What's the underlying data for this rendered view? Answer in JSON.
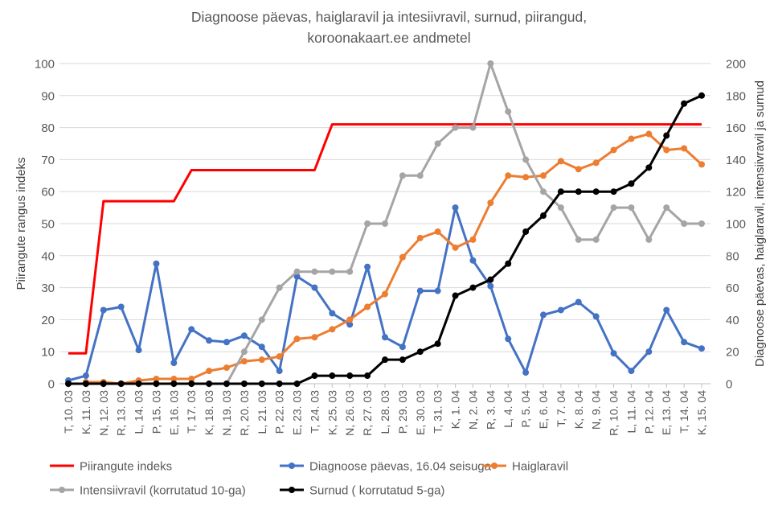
{
  "chart_data": {
    "type": "line",
    "title": "Diagnoose päevas, haiglaravil ja intesiivravil, surnud, piirangud, koroonakaart.ee andmetel",
    "title_lines": [
      "Diagnoose päevas, haiglaravil ja intesiivravil, surnud, piirangud,",
      "koroonakaart.ee andmetel"
    ],
    "ylabel": "Piirangute rangus indeks",
    "y2label": "Diagnoose päevas, haiglaravil, intensiivravil ja surnud",
    "ylim": [
      0,
      100
    ],
    "y2lim": [
      0,
      200
    ],
    "yticks": [
      0,
      10,
      20,
      30,
      40,
      50,
      60,
      70,
      80,
      90,
      100
    ],
    "y2ticks": [
      0,
      20,
      40,
      60,
      80,
      100,
      120,
      140,
      160,
      180,
      200
    ],
    "grid": true,
    "legend_position": "bottom",
    "categories": [
      "T, 10. 03",
      "K, 11. 03",
      "N, 12. 03",
      "R, 13. 03",
      "L, 14. 03",
      "P, 15. 03",
      "E, 16. 03",
      "T, 17. 03",
      "K, 18. 03",
      "N, 19. 03",
      "R, 20. 03",
      "L, 21. 03",
      "P, 22. 03",
      "E, 23. 03",
      "T, 24. 03",
      "K, 25. 03",
      "N, 26. 03",
      "R, 27. 03",
      "L, 28. 03",
      "P, 29. 03",
      "E, 30. 03",
      "T, 31. 03",
      "K, 1. 04",
      "N, 2. 04",
      "R, 3. 04",
      "L, 4. 04",
      "P, 5. 04",
      "E, 6. 04",
      "T, 7. 04",
      "K, 8. 04",
      "N, 9. 04",
      "R, 10. 04",
      "L, 11. 04",
      "P, 12. 04",
      "E, 13. 04",
      "T, 14. 04",
      "K, 15. 04"
    ],
    "series": [
      {
        "name": "Piirangute indeks",
        "axis": "left",
        "color": "#FF0000",
        "markers": false,
        "values": [
          9.5,
          9.5,
          57,
          57,
          57,
          57,
          57,
          66.7,
          66.7,
          66.7,
          66.7,
          66.7,
          66.7,
          66.7,
          66.7,
          81,
          81,
          81,
          81,
          81,
          81,
          81,
          81,
          81,
          81,
          81,
          81,
          81,
          81,
          81,
          81,
          81,
          81,
          81,
          81,
          81,
          81
        ]
      },
      {
        "name": "Diagnoose päevas, 16.04 seisuga",
        "axis": "right",
        "color": "#4472C4",
        "markers": true,
        "values": [
          2,
          5,
          46,
          48,
          21,
          75,
          13,
          34,
          27,
          26,
          30,
          23,
          8,
          67,
          60,
          44,
          37,
          73,
          29,
          23,
          58,
          58,
          110,
          77,
          61,
          28,
          7,
          43,
          46,
          51,
          42,
          19,
          8,
          20,
          46,
          26,
          22
        ]
      },
      {
        "name": "Haiglaravil",
        "axis": "right",
        "color": "#ED7D31",
        "markers": true,
        "values": [
          null,
          1,
          1,
          0,
          2,
          3,
          3,
          3,
          8,
          10,
          14,
          15,
          17,
          28,
          29,
          34,
          40,
          48,
          56,
          79,
          91,
          95,
          85,
          90,
          113,
          130,
          129,
          130,
          139,
          134,
          138,
          146,
          153,
          156,
          146,
          147,
          137
        ]
      },
      {
        "name": "Intensiivravil  (korrutatud 10-ga)",
        "axis": "right",
        "color": "#A5A5A5",
        "markers": true,
        "values": [
          null,
          null,
          null,
          null,
          null,
          null,
          null,
          null,
          null,
          0,
          20,
          40,
          60,
          70,
          70,
          70,
          70,
          100,
          100,
          130,
          130,
          150,
          160,
          160,
          200,
          170,
          140,
          120,
          110,
          90,
          90,
          110,
          110,
          90,
          110,
          100,
          100
        ]
      },
      {
        "name": "Surnud ( korrutatud 5-ga)",
        "axis": "right",
        "color": "#000000",
        "markers": true,
        "values": [
          0,
          0,
          0,
          0,
          0,
          0,
          0,
          0,
          0,
          0,
          0,
          0,
          0,
          0,
          5,
          5,
          5,
          5,
          15,
          15,
          20,
          25,
          55,
          60,
          65,
          75,
          95,
          105,
          120,
          120,
          120,
          120,
          125,
          135,
          155,
          175,
          180
        ]
      }
    ]
  }
}
